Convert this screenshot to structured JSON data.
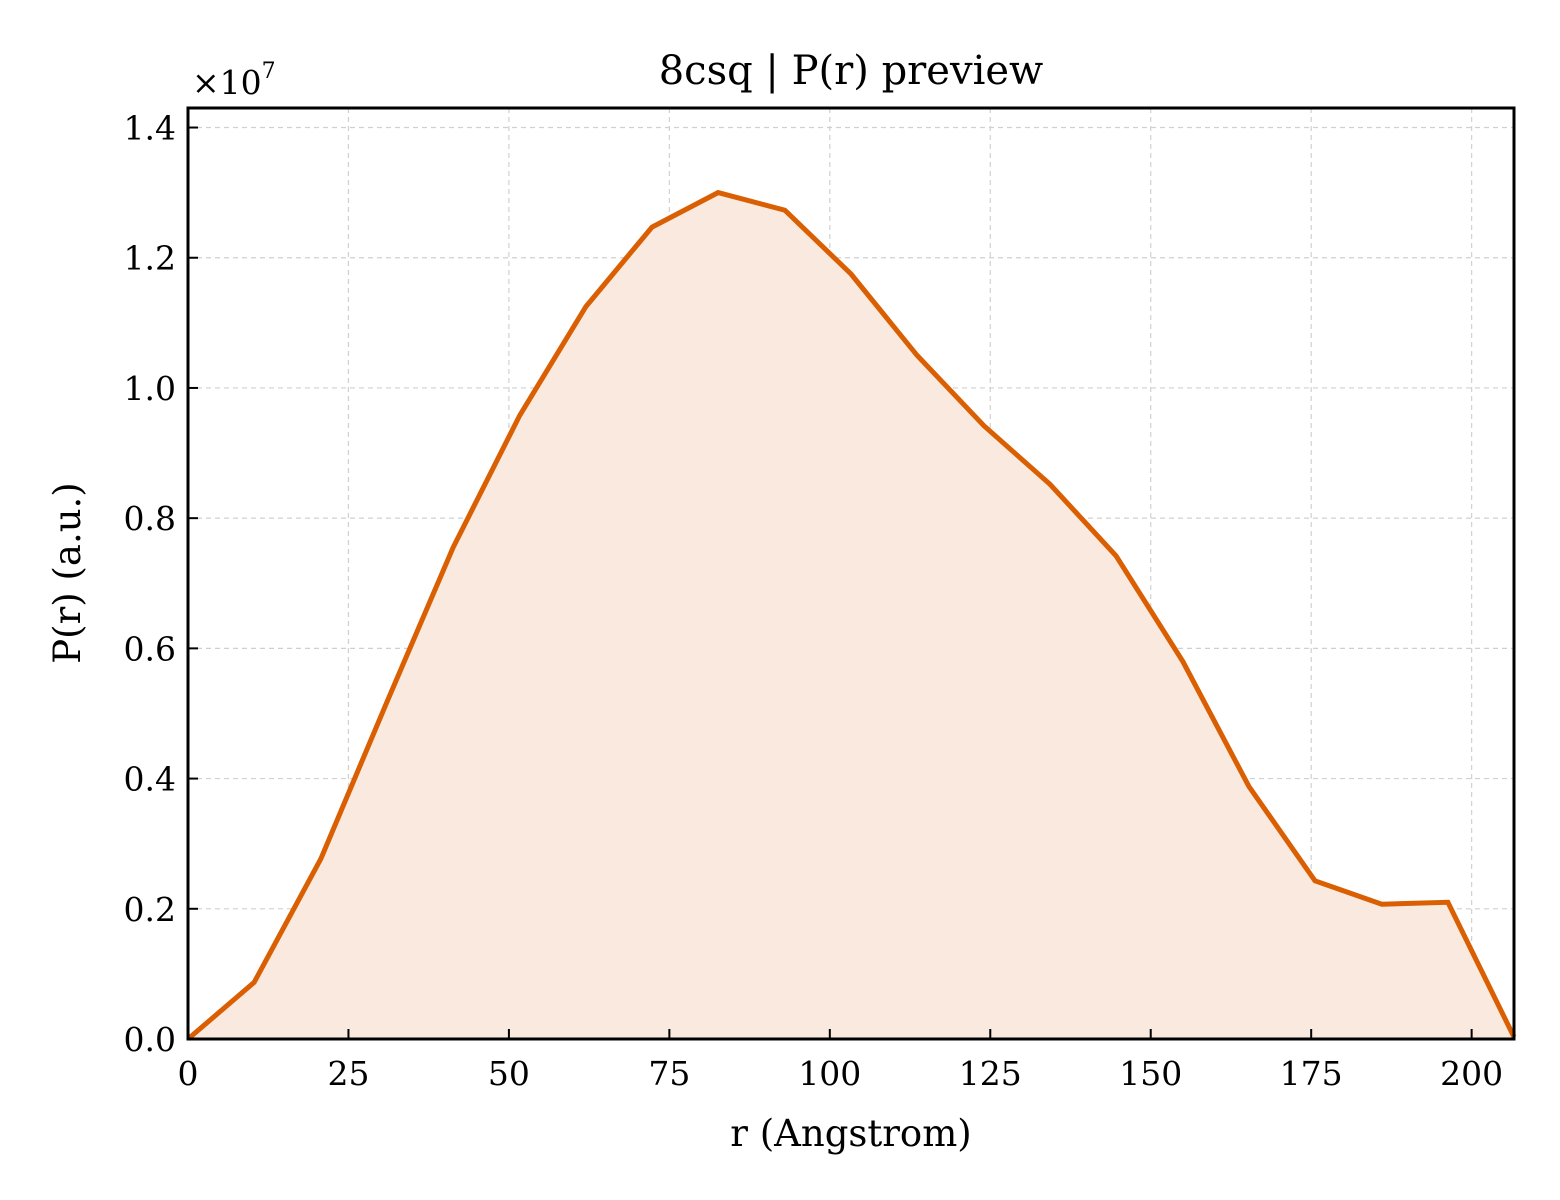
{
  "chart_data": {
    "type": "area",
    "title": "8csq | P(r) preview",
    "xlabel": "r (Angstrom)",
    "ylabel": "P(r) (a.u.)",
    "y_multiplier": {
      "base": "×10",
      "exponent": "7"
    },
    "xlim": [
      0,
      206.6
    ],
    "ylim": [
      0,
      1.43
    ],
    "x_ticks": [
      0,
      25,
      50,
      75,
      100,
      125,
      150,
      175,
      200
    ],
    "x_tick_labels": [
      "0",
      "25",
      "50",
      "75",
      "100",
      "125",
      "150",
      "175",
      "200"
    ],
    "y_ticks": [
      0.0,
      0.2,
      0.4,
      0.6,
      0.8,
      1.0,
      1.2,
      1.4
    ],
    "y_tick_labels": [
      "0.0",
      "0.2",
      "0.4",
      "0.6",
      "0.8",
      "1.0",
      "1.2",
      "1.4"
    ],
    "grid": true,
    "series": [
      {
        "color": "#d95f02",
        "fill_color": "#fae9de",
        "x": [
          0,
          10.3,
          20.7,
          31.0,
          41.3,
          51.7,
          62.0,
          72.3,
          82.6,
          93.0,
          103.3,
          113.6,
          124.0,
          134.3,
          144.6,
          155.0,
          165.3,
          175.6,
          186.0,
          196.3,
          206.6
        ],
        "y": [
          0.0,
          0.087,
          0.277,
          0.518,
          0.755,
          0.958,
          1.125,
          1.247,
          1.3,
          1.273,
          1.175,
          1.05,
          0.942,
          0.852,
          0.742,
          0.58,
          0.388,
          0.243,
          0.207,
          0.21,
          0.003
        ]
      }
    ]
  }
}
